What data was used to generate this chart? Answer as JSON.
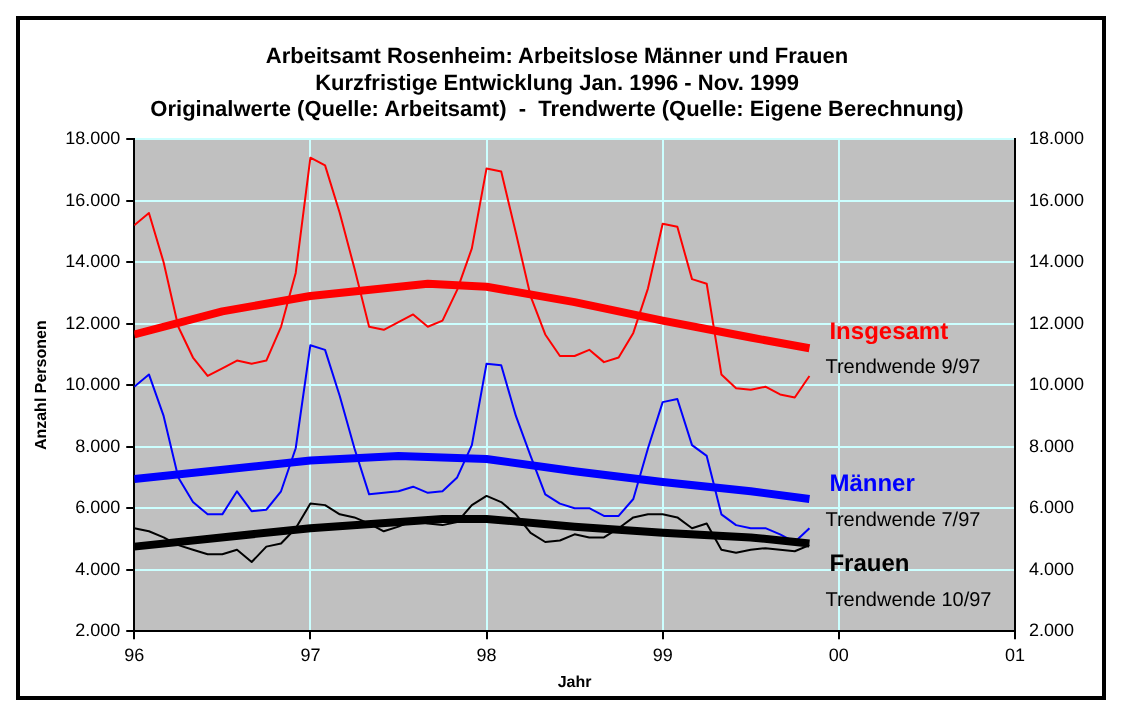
{
  "chart_data": {
    "type": "line",
    "title": [
      "Arbeitsamt Rosenheim: Arbeitslose Männer und Frauen",
      "Kurzfristige Entwicklung Jan. 1996 - Nov. 1999",
      "Originalwerte (Quelle: Arbeitsamt)  -  Trendwerte (Quelle: Eigene Berechnung)"
    ],
    "xlabel": "Jahr",
    "ylabel": "Anzahl Personen",
    "x": [
      "1996-01",
      "1996-02",
      "1996-03",
      "1996-04",
      "1996-05",
      "1996-06",
      "1996-07",
      "1996-08",
      "1996-09",
      "1996-10",
      "1996-11",
      "1996-12",
      "1997-01",
      "1997-02",
      "1997-03",
      "1997-04",
      "1997-05",
      "1997-06",
      "1997-07",
      "1997-08",
      "1997-09",
      "1997-10",
      "1997-11",
      "1997-12",
      "1998-01",
      "1998-02",
      "1998-03",
      "1998-04",
      "1998-05",
      "1998-06",
      "1998-07",
      "1998-08",
      "1998-09",
      "1998-10",
      "1998-11",
      "1998-12",
      "1999-01",
      "1999-02",
      "1999-03",
      "1999-04",
      "1999-05",
      "1999-06",
      "1999-07",
      "1999-08",
      "1999-09",
      "1999-10",
      "1999-11"
    ],
    "series": [
      {
        "name": "Insgesamt",
        "color": "#ff0000",
        "values": [
          15200,
          15600,
          14000,
          11900,
          10900,
          10300,
          10550,
          10800,
          10700,
          10800,
          11900,
          13650,
          17400,
          17150,
          15600,
          13800,
          11900,
          11800,
          12050,
          12300,
          11900,
          12100,
          13100,
          14450,
          17050,
          16950,
          14950,
          12900,
          11650,
          10950,
          10950,
          11150,
          10750,
          10900,
          11700,
          13150,
          15250,
          15150,
          13450,
          13300,
          10350,
          9900,
          9850,
          9950,
          9700,
          9600,
          10300
        ]
      },
      {
        "color": "#ff0000",
        "x": [
          "1996-01",
          "1996-07",
          "1997-01",
          "1997-09",
          "1998-01",
          "1998-07",
          "1999-01",
          "1999-07",
          "1999-11"
        ],
        "values": [
          11650,
          12400,
          12900,
          13300,
          13200,
          12700,
          12100,
          11550,
          11200
        ]
      },
      {
        "name": "Männer",
        "color": "#0000ff",
        "values": [
          9950,
          10350,
          9000,
          7000,
          6200,
          5800,
          5800,
          6550,
          5900,
          5950,
          6550,
          7950,
          11300,
          11150,
          9650,
          7950,
          6450,
          6500,
          6550,
          6700,
          6500,
          6550,
          7000,
          8050,
          10700,
          10650,
          9000,
          7700,
          6450,
          6150,
          6000,
          6000,
          5750,
          5750,
          6300,
          7950,
          9450,
          9550,
          8050,
          7700,
          5800,
          5450,
          5350,
          5350,
          5150,
          4900,
          5350
        ]
      },
      {
        "color": "#0000ff",
        "x": [
          "1996-01",
          "1997-01",
          "1997-07",
          "1998-01",
          "1998-07",
          "1999-01",
          "1999-07",
          "1999-11"
        ],
        "values": [
          6950,
          7550,
          7700,
          7600,
          7200,
          6850,
          6550,
          6300
        ]
      },
      {
        "name": "Frauen",
        "color": "#000000",
        "values": [
          5350,
          5250,
          5050,
          4800,
          4650,
          4500,
          4500,
          4650,
          4250,
          4750,
          4850,
          5350,
          6150,
          6100,
          5800,
          5700,
          5500,
          5250,
          5400,
          5600,
          5500,
          5450,
          5550,
          6100,
          6400,
          6200,
          5800,
          5200,
          4900,
          4950,
          5150,
          5050,
          5050,
          5350,
          5700,
          5800,
          5800,
          5700,
          5350,
          5500,
          4650,
          4550,
          4650,
          4700,
          4650,
          4600,
          4800
        ]
      },
      {
        "color": "#000000",
        "x": [
          "1996-01",
          "1997-01",
          "1997-10",
          "1998-01",
          "1998-07",
          "1999-01",
          "1999-07",
          "1999-11"
        ],
        "values": [
          4750,
          5350,
          5650,
          5650,
          5400,
          5200,
          5050,
          4850
        ]
      }
    ],
    "annotations": [
      "Trendwende 9/97",
      "Trendwende 7/97",
      "Trendwende 10/97"
    ],
    "xlim": [
      "1996-01",
      "2001-01"
    ],
    "xticks": [
      {
        "value": "1996-01",
        "label": "96"
      },
      {
        "value": "1997-01",
        "label": "97"
      },
      {
        "value": "1998-01",
        "label": "98"
      },
      {
        "value": "1999-01",
        "label": "99"
      },
      {
        "value": "2000-01",
        "label": "00"
      },
      {
        "value": "2001-01",
        "label": "01"
      }
    ],
    "ylim": [
      2000,
      18000
    ],
    "yticks": [
      {
        "value": 2000,
        "label": "2.000"
      },
      {
        "value": 4000,
        "label": "4.000"
      },
      {
        "value": 6000,
        "label": "6.000"
      },
      {
        "value": 8000,
        "label": "8.000"
      },
      {
        "value": 10000,
        "label": "10.000"
      },
      {
        "value": 12000,
        "label": "12.000"
      },
      {
        "value": 14000,
        "label": "14.000"
      },
      {
        "value": 16000,
        "label": "16.000"
      },
      {
        "value": 18000,
        "label": "18.000"
      }
    ],
    "y2lim": [
      2000,
      18000
    ],
    "y2ticks": [
      {
        "value": 2000,
        "label": "2.000"
      },
      {
        "value": 4000,
        "label": "4.000"
      },
      {
        "value": 6000,
        "label": "6.000"
      },
      {
        "value": 8000,
        "label": "8.000"
      },
      {
        "value": 10000,
        "label": "10.000"
      },
      {
        "value": 12000,
        "label": "12.000"
      },
      {
        "value": 14000,
        "label": "14.000"
      },
      {
        "value": 16000,
        "label": "16.000"
      },
      {
        "value": 18000,
        "label": "18.000"
      }
    ],
    "grid": true,
    "legend": false,
    "marker": "none",
    "line_style": "solid"
  }
}
